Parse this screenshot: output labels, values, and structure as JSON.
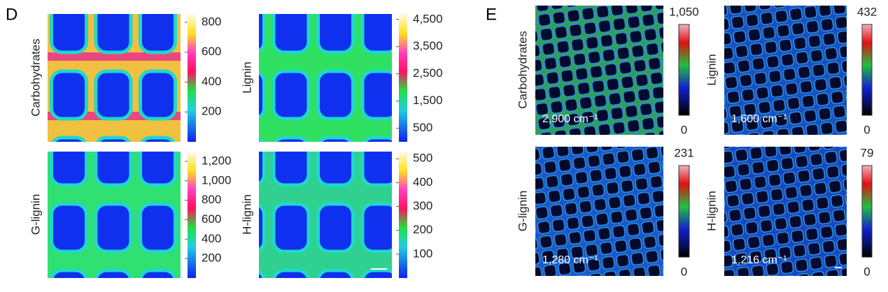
{
  "panels": [
    {
      "label": "D",
      "plots": [
        {
          "ylabel": "Carbohydrates",
          "colorbar": {
            "lim": [
              0,
              856
            ],
            "ticks": [
              200,
              400,
              600,
              800
            ]
          }
        },
        {
          "ylabel": "Lignin",
          "colorbar": {
            "lim": [
              0,
              4700
            ],
            "ticks": [
              {
                "value": 500,
                "label": "500"
              },
              {
                "value": 1500,
                "label": "1,500"
              },
              {
                "value": 2500,
                "label": "2,500"
              },
              {
                "value": 3500,
                "label": "3,500"
              },
              {
                "value": 4500,
                "label": "4,500"
              }
            ]
          }
        },
        {
          "ylabel": "G-lignin",
          "colorbar": {
            "lim": [
              0,
              1300
            ],
            "ticks": [
              200,
              400,
              600,
              800,
              {
                "value": 1000,
                "label": "1,000"
              },
              {
                "value": 1200,
                "label": "1,200"
              }
            ]
          }
        },
        {
          "ylabel": "H-lignin",
          "colorbar": {
            "lim": [
              0,
              530
            ],
            "ticks": [
              100,
              200,
              300,
              400,
              500
            ]
          }
        }
      ]
    },
    {
      "label": "E",
      "plots": [
        {
          "ylabel": "Carbohydrates",
          "note": "2,900 cm⁻¹",
          "colorbar": {
            "min": 0,
            "max": {
              "value": 1050,
              "label": "1,050"
            }
          }
        },
        {
          "ylabel": "Lignin",
          "note": "1,600 cm⁻¹",
          "colorbar": {
            "min": 0,
            "max": 432
          }
        },
        {
          "ylabel": "G-lignin",
          "note": "1,280 cm⁻¹",
          "colorbar": {
            "min": 0,
            "max": 231
          }
        },
        {
          "ylabel": "H-lignin",
          "note": "1,216 cm⁻¹",
          "colorbar": {
            "min": 0,
            "max": 79
          }
        }
      ]
    }
  ]
}
